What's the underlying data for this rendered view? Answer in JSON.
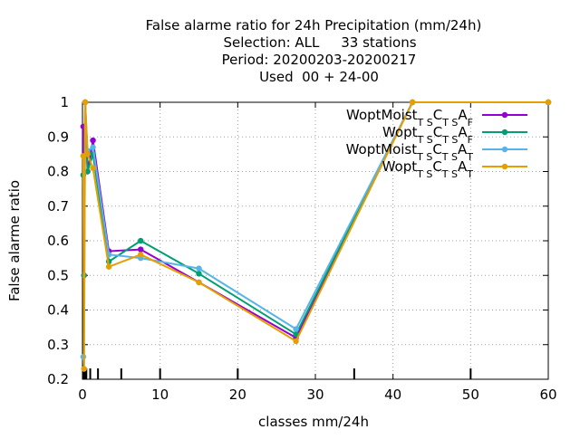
{
  "chart_data": {
    "type": "line",
    "title_lines": [
      "False alarme ratio  for 24h Precipitation (mm/24h)",
      "Selection: ALL     33 stations",
      "Period: 20200203-20200217",
      "Used  00 + 24-00"
    ],
    "xlabel": "classes mm/24h",
    "ylabel": "False alarme ratio",
    "xlim": [
      0,
      60
    ],
    "ylim": [
      0.2,
      1.0
    ],
    "x_ticks": [
      "0",
      "10",
      "20",
      "30",
      "40",
      "50",
      "60"
    ],
    "y_ticks": [
      "0.2",
      "0.3",
      "0.4",
      "0.5",
      "0.6",
      "0.7",
      "0.8",
      "0.9",
      "1"
    ],
    "x_tick_values": [
      0,
      10,
      20,
      30,
      40,
      50,
      60
    ],
    "y_tick_values": [
      0.2,
      0.3,
      0.4,
      0.5,
      0.6,
      0.7,
      0.8,
      0.9,
      1.0
    ],
    "class_marks": [
      0.1,
      0.2,
      0.3,
      0.5,
      1,
      2,
      5,
      10,
      20,
      35,
      50
    ],
    "grid": true,
    "legend_position": "top-right",
    "series": [
      {
        "name_base": "WoptMoist",
        "name_sub1": "T S",
        "name_mid": "C",
        "name_sub2": "T S",
        "name_a": "A",
        "name_sub3": "F",
        "color": "#9400d3",
        "x": [
          0.1,
          0.2,
          0.35,
          0.65,
          1.35,
          3.4,
          7.5,
          15,
          27.5,
          42.5,
          60
        ],
        "y": [
          0.93,
          0.5,
          1.0,
          0.8,
          0.89,
          0.57,
          0.575,
          0.48,
          0.32,
          1.0,
          1.0
        ]
      },
      {
        "name_base": "Wopt",
        "name_sub1": "T S",
        "name_mid": "C",
        "name_sub2": "T S",
        "name_a": "A",
        "name_sub3": "F",
        "color": "#009e73",
        "x": [
          0.1,
          0.2,
          0.35,
          0.65,
          1.35,
          3.4,
          7.5,
          15,
          27.5,
          42.5,
          60
        ],
        "y": [
          0.79,
          0.5,
          1.0,
          0.8,
          0.85,
          0.54,
          0.6,
          0.505,
          0.33,
          1.0,
          1.0
        ]
      },
      {
        "name_base": "WoptMoist",
        "name_sub1": "T S",
        "name_mid": "C",
        "name_sub2": "T S",
        "name_a": "A",
        "name_sub3": "T",
        "color": "#56b4e9",
        "x": [
          0.1,
          0.2,
          0.35,
          0.65,
          1.35,
          3.4,
          7.5,
          15,
          27.5,
          42.5,
          60
        ],
        "y": [
          0.265,
          0.23,
          1.0,
          0.86,
          0.87,
          0.56,
          0.55,
          0.52,
          0.345,
          1.0,
          1.0
        ]
      },
      {
        "name_base": "Wopt",
        "name_sub1": "T S",
        "name_mid": "C",
        "name_sub2": "T S",
        "name_a": "A",
        "name_sub3": "T",
        "color": "#e69f00",
        "x": [
          0.1,
          0.2,
          0.35,
          0.65,
          1.35,
          3.4,
          7.5,
          15,
          27.5,
          42.5,
          60
        ],
        "y": [
          0.845,
          0.23,
          1.0,
          0.85,
          0.81,
          0.525,
          0.56,
          0.48,
          0.31,
          1.0,
          1.0
        ]
      }
    ]
  }
}
